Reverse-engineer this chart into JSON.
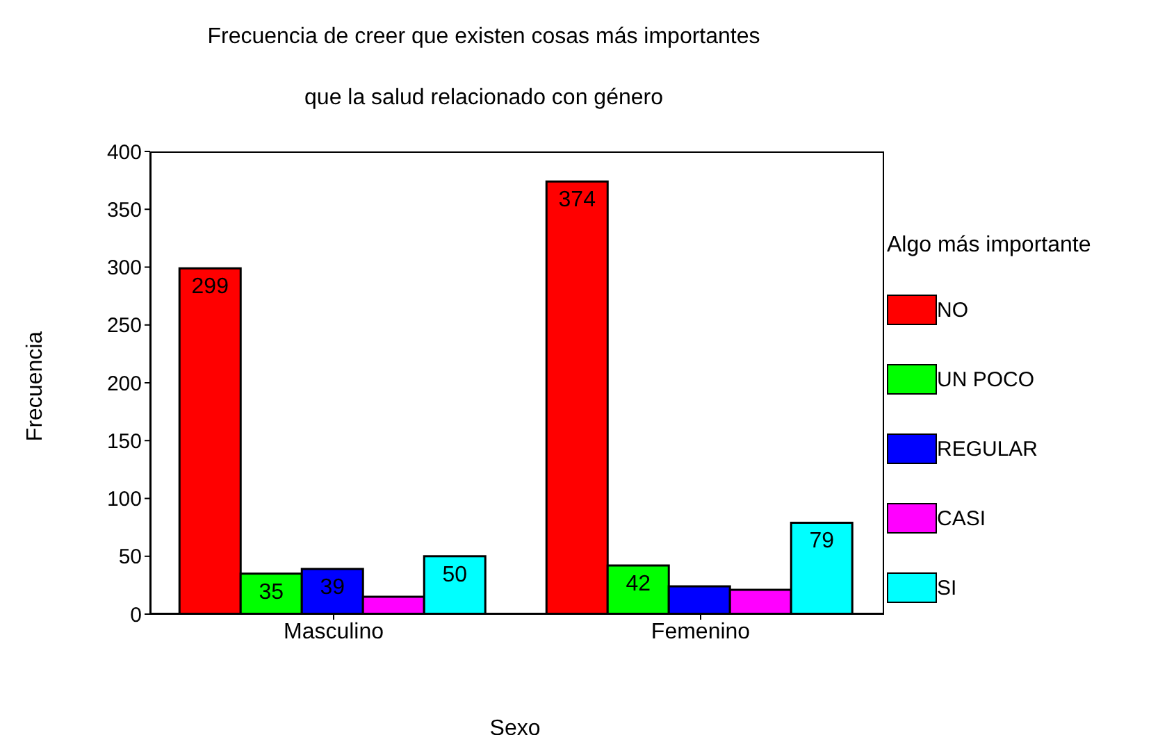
{
  "chart_data": {
    "type": "bar",
    "title": "Frecuencia de creer que existen cosas más importantes",
    "subtitle": "que la  salud relacionado con género",
    "xlabel": "Sexo",
    "ylabel": "Frecuencia",
    "legend_title": "Algo más importante",
    "categories": [
      "Masculino",
      "Femenino"
    ],
    "series": [
      {
        "name": "NO",
        "color": "#ff0000",
        "values": [
          299,
          374
        ],
        "value_labels": [
          "299",
          "374"
        ]
      },
      {
        "name": "UN POCO",
        "color": "#00ff00",
        "values": [
          35,
          42
        ],
        "value_labels": [
          "35",
          "42"
        ]
      },
      {
        "name": "REGULAR",
        "color": "#0000ff",
        "values": [
          39,
          24
        ],
        "value_labels": [
          "39",
          null
        ]
      },
      {
        "name": "CASI",
        "color": "#ff00ff",
        "values": [
          15,
          21
        ],
        "value_labels": [
          null,
          null
        ]
      },
      {
        "name": "SI",
        "color": "#00ffff",
        "values": [
          50,
          79
        ],
        "value_labels": [
          "50",
          "79"
        ]
      }
    ],
    "ylim": [
      0,
      400
    ],
    "yticks": [
      0,
      50,
      100,
      150,
      200,
      250,
      300,
      350,
      400
    ],
    "grid": false,
    "legend": "right"
  }
}
